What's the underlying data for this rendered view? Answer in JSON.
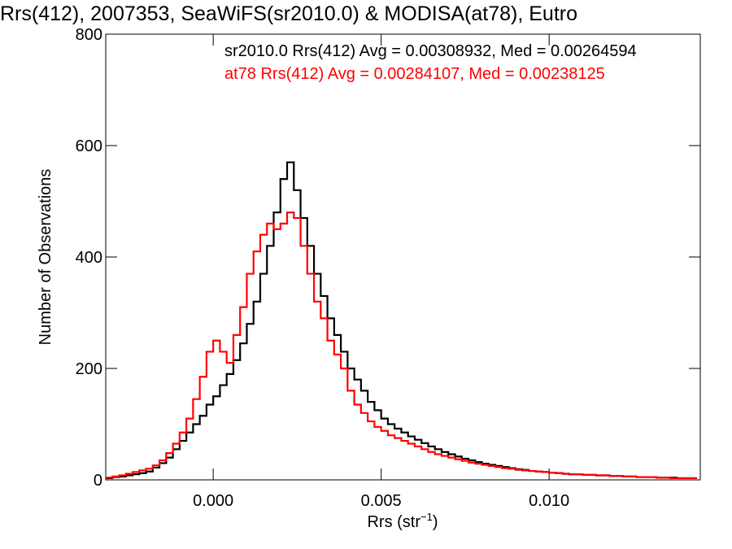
{
  "title": "Rrs(412), 2007353, SeaWiFS(sr2010.0) & MODISA(at78), Eutro",
  "annotations": [
    "sr2010.0 Rrs(412) Avg = 0.00308932, Med = 0.00264594",
    "at78 Rrs(412) Avg = 0.00284107, Med = 0.00238125"
  ],
  "chart_data": {
    "type": "histogram",
    "xlabel_main": "Rrs (str",
    "xlabel_sup": "−1",
    "xlabel_end": ")",
    "ylabel": "Number of Observations",
    "xlim": [
      -0.0032,
      0.0145
    ],
    "ylim": [
      0,
      800
    ],
    "xticks": [
      0.0,
      0.005,
      0.01
    ],
    "xtick_labels": [
      "0.000",
      "0.005",
      "0.010"
    ],
    "yticks": [
      0,
      200,
      400,
      600,
      800
    ],
    "ytick_labels": [
      "0",
      "200",
      "400",
      "600",
      "800"
    ],
    "grid": false,
    "x": [
      -0.0032,
      -0.003,
      -0.0028,
      -0.0026,
      -0.0024,
      -0.0022,
      -0.002,
      -0.0018,
      -0.0016,
      -0.0014,
      -0.0012,
      -0.001,
      -0.0008,
      -0.0006,
      -0.0004,
      -0.0002,
      0.0,
      0.0002,
      0.0004,
      0.0006,
      0.0008,
      0.001,
      0.0012,
      0.0014,
      0.0016,
      0.0018,
      0.002,
      0.0022,
      0.0024,
      0.0026,
      0.0028,
      0.003,
      0.0032,
      0.0034,
      0.0036,
      0.0038,
      0.004,
      0.0042,
      0.0044,
      0.0046,
      0.0048,
      0.005,
      0.0052,
      0.0054,
      0.0056,
      0.0058,
      0.006,
      0.0062,
      0.0064,
      0.0066,
      0.0068,
      0.007,
      0.0072,
      0.0074,
      0.0076,
      0.0078,
      0.008,
      0.0082,
      0.0084,
      0.0086,
      0.0088,
      0.009,
      0.0092,
      0.0094,
      0.0096,
      0.0098,
      0.01,
      0.0102,
      0.0104,
      0.0106,
      0.0108,
      0.011,
      0.0112,
      0.0114,
      0.0116,
      0.0118,
      0.012,
      0.0122,
      0.0124,
      0.0126,
      0.0128,
      0.013,
      0.0132,
      0.0134,
      0.0136,
      0.0138,
      0.014,
      0.0142
    ],
    "series": [
      {
        "name": "sr2010.0",
        "color": "#000000",
        "values": [
          3,
          5,
          6,
          8,
          10,
          12,
          15,
          22,
          30,
          40,
          55,
          70,
          85,
          100,
          115,
          135,
          150,
          170,
          190,
          215,
          245,
          280,
          320,
          370,
          420,
          480,
          540,
          570,
          520,
          470,
          420,
          370,
          330,
          290,
          260,
          230,
          200,
          180,
          160,
          140,
          125,
          110,
          100,
          92,
          85,
          78,
          72,
          66,
          60,
          55,
          50,
          46,
          42,
          38,
          35,
          32,
          29,
          27,
          25,
          23,
          21,
          19,
          18,
          16,
          15,
          14,
          13,
          12,
          11,
          10,
          10,
          9,
          9,
          8,
          8,
          7,
          7,
          6,
          6,
          5,
          5,
          5,
          4,
          4,
          4,
          3,
          3,
          3
        ]
      },
      {
        "name": "at78",
        "color": "#ff0000",
        "values": [
          4,
          6,
          8,
          11,
          14,
          17,
          20,
          26,
          35,
          48,
          65,
          85,
          110,
          145,
          185,
          230,
          250,
          230,
          210,
          260,
          310,
          370,
          410,
          440,
          460,
          450,
          460,
          480,
          470,
          420,
          370,
          320,
          290,
          250,
          225,
          200,
          160,
          135,
          120,
          105,
          95,
          88,
          80,
          75,
          70,
          65,
          60,
          55,
          50,
          46,
          43,
          40,
          37,
          34,
          31,
          29,
          27,
          25,
          23,
          21,
          20,
          18,
          17,
          16,
          15,
          14,
          13,
          12,
          11,
          10,
          10,
          9,
          9,
          8,
          8,
          7,
          7,
          6,
          6,
          5,
          5,
          5,
          4,
          4,
          3,
          3,
          3,
          3
        ]
      }
    ]
  }
}
